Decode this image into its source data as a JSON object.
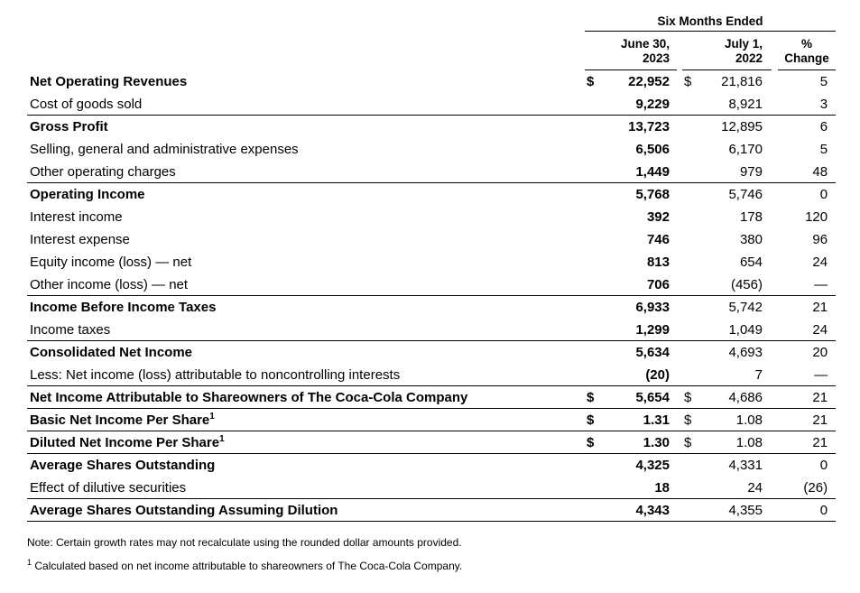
{
  "table": {
    "currency_symbol": "$",
    "span_header": "Six Months Ended",
    "col_headers": {
      "c2023": {
        "line1": "June 30,",
        "line2": "2023"
      },
      "c2022": {
        "line1": "July 1,",
        "line2": "2022"
      },
      "chg": {
        "line1": "%",
        "line2": "Change"
      }
    },
    "rows": [
      {
        "label": "Net Operating Revenues",
        "bold": true,
        "dollar": true,
        "v2023": "22,952",
        "v2022": "21,816",
        "chg": "5",
        "rule": false
      },
      {
        "label": "Cost of goods sold",
        "bold": false,
        "dollar": false,
        "v2023": "9,229",
        "v2022": "8,921",
        "chg": "3",
        "rule": true
      },
      {
        "label": "Gross Profit",
        "bold": true,
        "dollar": false,
        "v2023": "13,723",
        "v2022": "12,895",
        "chg": "6",
        "rule": false
      },
      {
        "label": "Selling, general and administrative expenses",
        "bold": false,
        "dollar": false,
        "v2023": "6,506",
        "v2022": "6,170",
        "chg": "5",
        "rule": false
      },
      {
        "label": "Other operating charges",
        "bold": false,
        "dollar": false,
        "v2023": "1,449",
        "v2022": "979",
        "chg": "48",
        "rule": true
      },
      {
        "label": "Operating Income",
        "bold": true,
        "dollar": false,
        "v2023": "5,768",
        "v2022": "5,746",
        "chg": "0",
        "rule": false
      },
      {
        "label": "Interest income",
        "bold": false,
        "dollar": false,
        "v2023": "392",
        "v2022": "178",
        "chg": "120",
        "rule": false
      },
      {
        "label": "Interest expense",
        "bold": false,
        "dollar": false,
        "v2023": "746",
        "v2022": "380",
        "chg": "96",
        "rule": false
      },
      {
        "label": "Equity income (loss) — net",
        "bold": false,
        "dollar": false,
        "v2023": "813",
        "v2022": "654",
        "chg": "24",
        "rule": false
      },
      {
        "label": "Other income (loss) — net",
        "bold": false,
        "dollar": false,
        "v2023": "706",
        "v2022": "(456)",
        "chg": "—",
        "rule": true
      },
      {
        "label": "Income Before Income Taxes",
        "bold": true,
        "dollar": false,
        "v2023": "6,933",
        "v2022": "5,742",
        "chg": "21",
        "rule": false
      },
      {
        "label": "Income taxes",
        "bold": false,
        "dollar": false,
        "v2023": "1,299",
        "v2022": "1,049",
        "chg": "24",
        "rule": true
      },
      {
        "label": "Consolidated Net Income",
        "bold": true,
        "dollar": false,
        "v2023": "5,634",
        "v2022": "4,693",
        "chg": "20",
        "rule": false
      },
      {
        "label": "Less: Net income (loss) attributable to noncontrolling interests",
        "bold": false,
        "dollar": false,
        "v2023": "(20)",
        "v2022": "7",
        "chg": "—",
        "rule": true
      },
      {
        "label": "Net Income Attributable to Shareowners of The Coca-Cola Company",
        "bold": true,
        "dollar": true,
        "v2023": "5,654",
        "v2022": "4,686",
        "chg": "21",
        "rule": true
      },
      {
        "label": "Basic Net Income Per Share",
        "sup": "1",
        "bold": true,
        "dollar": true,
        "v2023": "1.31",
        "v2022": "1.08",
        "chg": "21",
        "rule": true
      },
      {
        "label": "Diluted Net Income Per Share",
        "sup": "1",
        "bold": true,
        "dollar": true,
        "v2023": "1.30",
        "v2022": "1.08",
        "chg": "21",
        "rule": true
      },
      {
        "label": "Average Shares Outstanding",
        "bold": true,
        "dollar": false,
        "v2023": "4,325",
        "v2022": "4,331",
        "chg": "0",
        "rule": false
      },
      {
        "label": "Effect of dilutive securities",
        "bold": false,
        "dollar": false,
        "v2023": "18",
        "v2022": "24",
        "chg": "(26)",
        "rule": true
      },
      {
        "label": "Average Shares Outstanding Assuming Dilution",
        "bold": true,
        "dollar": false,
        "v2023": "4,343",
        "v2022": "4,355",
        "chg": "0",
        "rule": true
      }
    ]
  },
  "footnotes": {
    "note": "Note: Certain growth rates may not recalculate using the rounded dollar amounts provided.",
    "marker": "1",
    "footnote1": "Calculated based on net income attributable to shareowners of The Coca-Cola Company."
  }
}
